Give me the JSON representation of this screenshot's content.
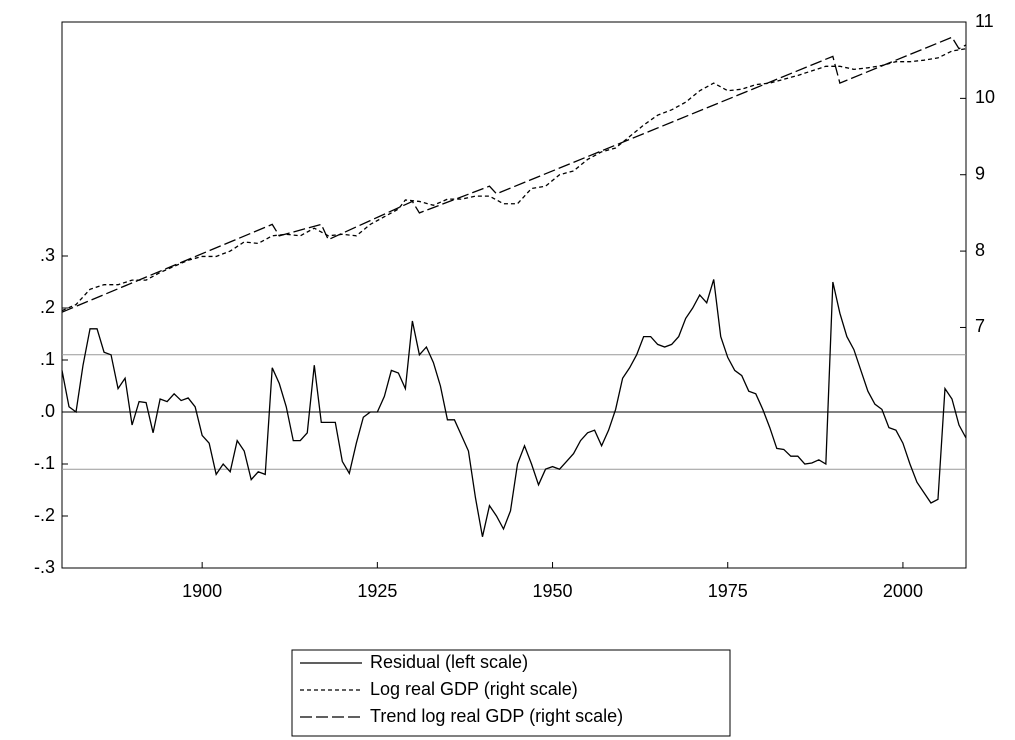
{
  "chart_data": {
    "type": "line",
    "x": [
      1880,
      1881,
      1882,
      1883,
      1884,
      1885,
      1886,
      1887,
      1888,
      1889,
      1890,
      1891,
      1892,
      1893,
      1894,
      1895,
      1896,
      1897,
      1898,
      1899,
      1900,
      1901,
      1902,
      1903,
      1904,
      1905,
      1906,
      1907,
      1908,
      1909,
      1910,
      1911,
      1912,
      1913,
      1914,
      1915,
      1916,
      1917,
      1918,
      1919,
      1920,
      1921,
      1922,
      1923,
      1924,
      1925,
      1926,
      1927,
      1928,
      1929,
      1930,
      1931,
      1932,
      1933,
      1934,
      1935,
      1936,
      1937,
      1938,
      1939,
      1940,
      1941,
      1942,
      1943,
      1944,
      1945,
      1946,
      1947,
      1948,
      1949,
      1950,
      1951,
      1952,
      1953,
      1954,
      1955,
      1956,
      1957,
      1958,
      1959,
      1960,
      1961,
      1962,
      1963,
      1964,
      1965,
      1966,
      1967,
      1968,
      1969,
      1970,
      1971,
      1972,
      1973,
      1974,
      1975,
      1976,
      1977,
      1978,
      1979,
      1980,
      1981,
      1982,
      1983,
      1984,
      1985,
      1986,
      1987,
      1988,
      1989,
      1990,
      1991,
      1992,
      1993,
      1994,
      1995,
      1996,
      1997,
      1998,
      1999,
      2000,
      2001,
      2002,
      2003,
      2004,
      2005,
      2006,
      2007,
      2008,
      2009
    ],
    "series": [
      {
        "name": "Residual (left scale)",
        "color": "#000000",
        "dash": "none",
        "values": [
          0.08,
          0.01,
          0.0,
          0.09,
          0.16,
          0.16,
          0.115,
          0.11,
          0.045,
          0.065,
          -0.025,
          0.02,
          0.018,
          -0.04,
          0.025,
          0.02,
          0.035,
          0.022,
          0.027,
          0.01,
          -0.045,
          -0.06,
          -0.12,
          -0.1,
          -0.115,
          -0.055,
          -0.075,
          -0.13,
          -0.115,
          -0.12,
          0.085,
          0.055,
          0.01,
          -0.055,
          -0.055,
          -0.04,
          0.09,
          -0.02,
          -0.02,
          -0.02,
          -0.095,
          -0.118,
          -0.06,
          -0.01,
          0.0,
          0.0,
          0.03,
          0.08,
          0.075,
          0.045,
          0.175,
          0.11,
          0.125,
          0.095,
          0.05,
          -0.015,
          -0.015,
          -0.045,
          -0.075,
          -0.165,
          -0.24,
          -0.18,
          -0.2,
          -0.225,
          -0.19,
          -0.1,
          -0.065,
          -0.1,
          -0.14,
          -0.11,
          -0.105,
          -0.11,
          -0.095,
          -0.08,
          -0.055,
          -0.04,
          -0.035,
          -0.065,
          -0.035,
          0.005,
          0.065,
          0.085,
          0.11,
          0.145,
          0.145,
          0.13,
          0.125,
          0.13,
          0.145,
          0.18,
          0.2,
          0.225,
          0.21,
          0.255,
          0.145,
          0.105,
          0.08,
          0.07,
          0.04,
          0.035,
          0.005,
          -0.03,
          -0.07,
          -0.072,
          -0.085,
          -0.085,
          -0.1,
          -0.098,
          -0.092,
          -0.1,
          0.25,
          0.19,
          0.145,
          0.12,
          0.08,
          0.04,
          0.015,
          0.005,
          -0.03,
          -0.035,
          -0.06,
          -0.1,
          -0.135,
          -0.155,
          -0.175,
          -0.168,
          0.045,
          0.025,
          -0.025,
          -0.05
        ]
      },
      {
        "name": "Log real GDP (right scale)",
        "color": "#000000",
        "dash": "4 3",
        "axis": "y2",
        "x": [
          1880,
          1882,
          1884,
          1886,
          1888,
          1890,
          1892,
          1894,
          1896,
          1898,
          1900,
          1902,
          1904,
          1906,
          1908,
          1910,
          1912,
          1914,
          1916,
          1918,
          1920,
          1922,
          1924,
          1926,
          1928,
          1929,
          1931,
          1933,
          1935,
          1937,
          1939,
          1941,
          1943,
          1945,
          1947,
          1949,
          1951,
          1953,
          1955,
          1957,
          1959,
          1961,
          1963,
          1965,
          1967,
          1969,
          1971,
          1973,
          1975,
          1977,
          1979,
          1981,
          1983,
          1985,
          1987,
          1989,
          1991,
          1993,
          1995,
          1997,
          1999,
          2001,
          2003,
          2005,
          2007,
          2009
        ],
        "values": [
          7.22,
          7.3,
          7.5,
          7.56,
          7.56,
          7.62,
          7.62,
          7.72,
          7.8,
          7.88,
          7.93,
          7.93,
          8.0,
          8.12,
          8.1,
          8.2,
          8.22,
          8.2,
          8.3,
          8.2,
          8.22,
          8.2,
          8.35,
          8.45,
          8.55,
          8.67,
          8.65,
          8.6,
          8.68,
          8.68,
          8.72,
          8.72,
          8.62,
          8.62,
          8.82,
          8.85,
          9.0,
          9.05,
          9.2,
          9.3,
          9.35,
          9.5,
          9.65,
          9.78,
          9.85,
          9.95,
          10.1,
          10.2,
          10.1,
          10.12,
          10.18,
          10.2,
          10.25,
          10.3,
          10.36,
          10.42,
          10.42,
          10.38,
          10.4,
          10.43,
          10.48,
          10.48,
          10.5,
          10.53,
          10.62,
          10.65
        ]
      },
      {
        "name": "Trend log real GDP (right scale)",
        "color": "#000000",
        "dash": "12 4",
        "axis": "y2",
        "x": [
          1880,
          1910,
          1911,
          1917,
          1918,
          1930,
          1931,
          1941,
          1942,
          1990,
          1991,
          2007,
          2008,
          2009
        ],
        "values": [
          7.2,
          8.35,
          8.2,
          8.35,
          8.15,
          8.65,
          8.5,
          8.85,
          8.75,
          10.55,
          10.2,
          10.8,
          10.65,
          10.7
        ]
      }
    ],
    "xlim": [
      1880,
      2009
    ],
    "xticks": [
      1900,
      1925,
      1950,
      1975,
      2000
    ],
    "ylim": [
      -0.3,
      0.75
    ],
    "yticks": [
      {
        "value": -0.3,
        "label": "-.3"
      },
      {
        "value": -0.2,
        "label": "-.2"
      },
      {
        "value": -0.1,
        "label": "-.1"
      },
      {
        "value": 0,
        "label": ".0"
      },
      {
        "value": 0.1,
        "label": ".1"
      },
      {
        "value": 0.2,
        "label": ".2"
      },
      {
        "value": 0.3,
        "label": ".3"
      }
    ],
    "y2lim": [
      3.85,
      11
    ],
    "y2ticks": [
      7,
      8,
      9,
      10,
      11
    ],
    "bands": [
      0.11,
      -0.11
    ],
    "zero_line": true,
    "grid": false
  }
}
